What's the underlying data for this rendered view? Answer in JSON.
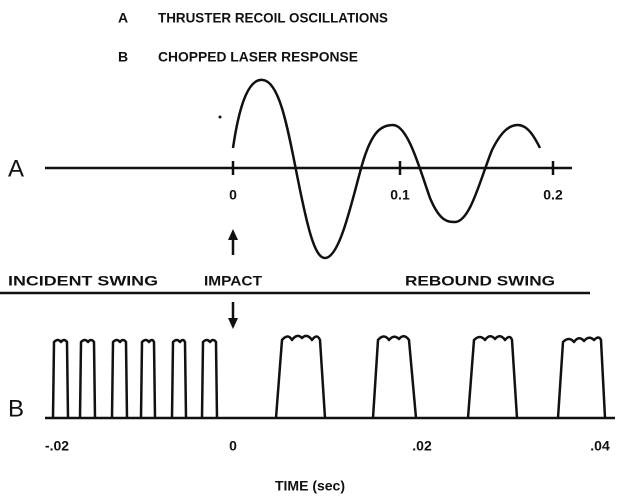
{
  "legend": [
    {
      "key": "A",
      "label": "THRUSTER RECOIL OSCILLATIONS"
    },
    {
      "key": "B",
      "label": "CHOPPED LASER RESPONSE"
    }
  ],
  "panel_a": {
    "label": "A",
    "ticks": [
      "0",
      "0.1",
      "0.2"
    ]
  },
  "phases": {
    "incident": "INCIDENT SWING",
    "impact": "IMPACT",
    "rebound": "REBOUND SWING"
  },
  "panel_b": {
    "label": "B",
    "ticks": [
      "-.02",
      "0",
      ".02",
      ".04"
    ],
    "axis_label": "TIME (sec)"
  }
}
